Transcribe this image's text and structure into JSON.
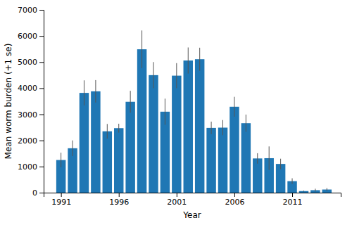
{
  "chart_data": {
    "type": "bar",
    "x": [
      1991,
      1992,
      1993,
      1994,
      1995,
      1996,
      1997,
      1998,
      1999,
      2000,
      2001,
      2002,
      2003,
      2004,
      2005,
      2006,
      2007,
      2008,
      2009,
      2010,
      2011,
      2012,
      2013,
      2014
    ],
    "values": [
      1250,
      1700,
      3820,
      3880,
      2350,
      2470,
      3480,
      5490,
      4500,
      3100,
      4480,
      5060,
      5110,
      2480,
      2490,
      3290,
      2660,
      1310,
      1320,
      1100,
      440,
      60,
      95,
      120
    ],
    "errors": [
      280,
      300,
      480,
      430,
      280,
      170,
      420,
      720,
      500,
      500,
      480,
      500,
      440,
      240,
      290,
      380,
      330,
      200,
      450,
      200,
      110,
      20,
      55,
      55
    ],
    "xlabel": "Year",
    "ylabel": "Mean worm burden (+1 se)",
    "xlim": [
      1989.5,
      2015.2
    ],
    "xticks": [
      1991,
      1996,
      2001,
      2006,
      2011
    ],
    "ylim": [
      0,
      7000
    ],
    "yticks": [
      0,
      1000,
      2000,
      3000,
      4000,
      5000,
      6000,
      7000
    ],
    "grid": false
  }
}
